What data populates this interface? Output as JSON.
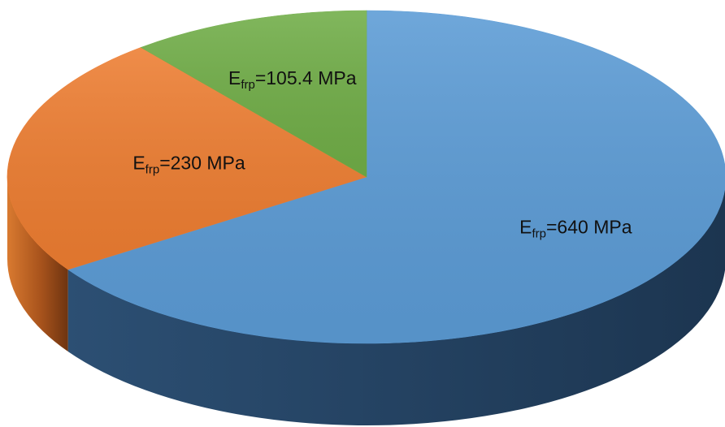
{
  "chart_data": {
    "type": "pie",
    "style": "3d",
    "title": "",
    "slices": [
      {
        "label": "Efrp=640 MPa",
        "symbol": "E",
        "subscript": "frp",
        "text": "=640 MPa",
        "value": 640,
        "color": "#5b9bd5"
      },
      {
        "label": "Efrp=230 MPa",
        "symbol": "E",
        "subscript": "frp",
        "text": "=230 MPa",
        "value": 230,
        "color": "#ed7d31"
      },
      {
        "label": "Efrp=105.4 MPa",
        "symbol": "E",
        "subscript": "frp",
        "text": "=105.4 MPa",
        "value": 105.4,
        "color": "#70ad47"
      }
    ]
  }
}
